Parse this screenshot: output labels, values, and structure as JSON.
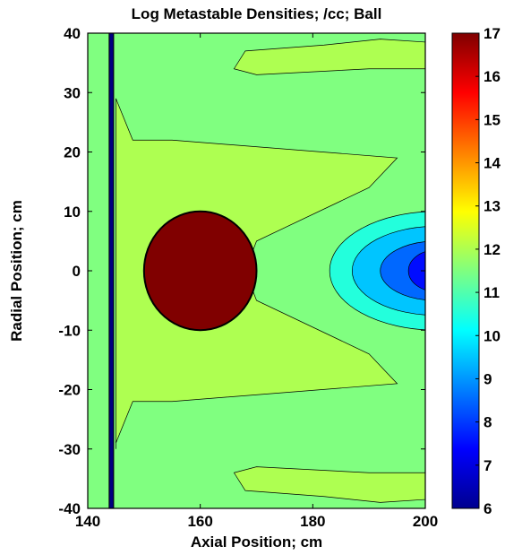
{
  "chart_data": {
    "type": "heatmap",
    "subtype": "filled-contour",
    "title": "Log Metastable Densities; /cc; Ball",
    "xlabel": "Axial Position; cm",
    "ylabel": "Radial Position; cm",
    "xlim": [
      140,
      200
    ],
    "ylim": [
      -40,
      40
    ],
    "x_ticks": [
      140,
      160,
      180,
      200
    ],
    "y_ticks": [
      40,
      30,
      20,
      10,
      0,
      -10,
      -20,
      -30,
      -40
    ],
    "colorbar": {
      "min": 6,
      "max": 17,
      "ticks": [
        17,
        16,
        15,
        14,
        13,
        12,
        11,
        10,
        9,
        8,
        7,
        6
      ],
      "colormap": "jet"
    },
    "regions": [
      {
        "label": "background",
        "value": 11.5
      },
      {
        "label": "central plume",
        "value": 12.0
      },
      {
        "label": "upper band",
        "value": 12.0
      },
      {
        "label": "lower band",
        "value": 12.0
      },
      {
        "label": "ball",
        "value": 17.0
      },
      {
        "label": "right depletion outer",
        "value": 10.5
      },
      {
        "label": "right depletion mid",
        "value": 9.5
      },
      {
        "label": "right depletion inner",
        "value": 8.5
      },
      {
        "label": "right depletion core",
        "value": 7.5
      },
      {
        "label": "left wall",
        "value": 6.0
      }
    ]
  }
}
